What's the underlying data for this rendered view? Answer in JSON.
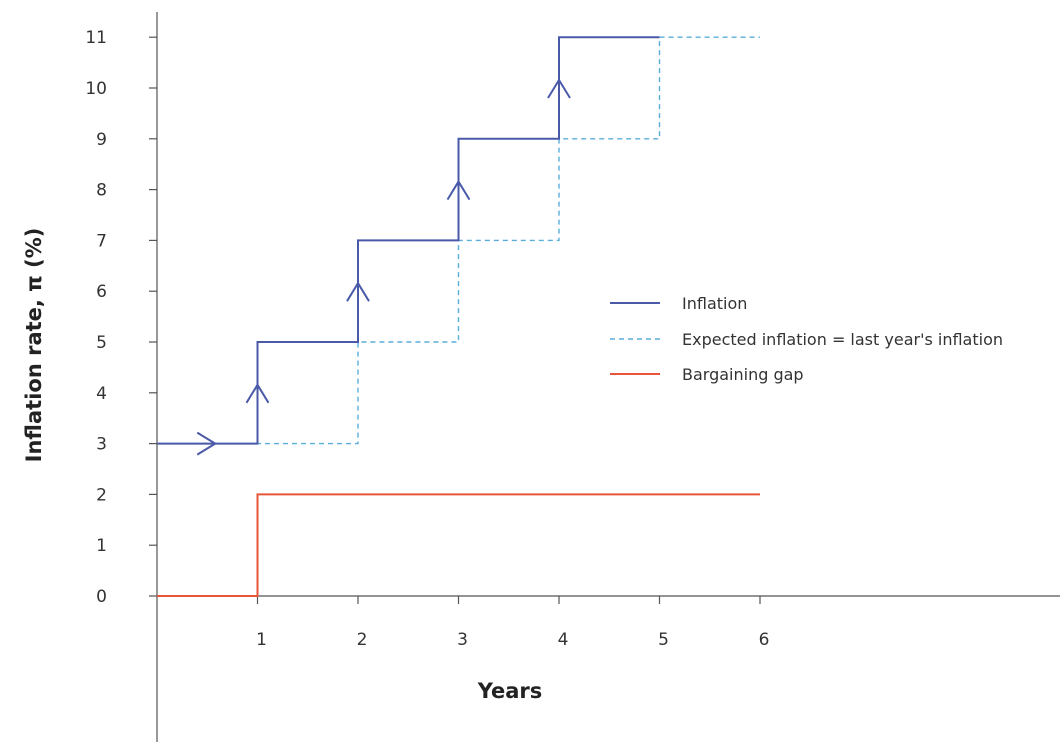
{
  "chart_data": {
    "type": "line",
    "xlabel": "Years",
    "ylabel": "Inflation rate, π (%)",
    "xlim": [
      0,
      9
    ],
    "ylim": [
      0,
      11
    ],
    "x_ticks": [
      "1",
      "2",
      "3",
      "4",
      "5",
      "6"
    ],
    "y_ticks": [
      "0",
      "1",
      "2",
      "3",
      "4",
      "5",
      "6",
      "7",
      "8",
      "9",
      "10",
      "11"
    ],
    "legend_position": "right",
    "series": [
      {
        "name": "Inflation",
        "style": "solid",
        "color": "#4a5aa8",
        "points": [
          [
            0,
            3
          ],
          [
            1,
            3
          ],
          [
            1,
            5
          ],
          [
            2,
            5
          ],
          [
            2,
            7
          ],
          [
            3,
            7
          ],
          [
            3,
            9
          ],
          [
            4,
            9
          ],
          [
            4,
            11
          ],
          [
            5,
            11
          ]
        ],
        "arrows": [
          {
            "x": 0.5,
            "y": 3,
            "direction": "right"
          },
          {
            "x": 1,
            "y": 4,
            "direction": "up"
          },
          {
            "x": 2,
            "y": 6,
            "direction": "up"
          },
          {
            "x": 3,
            "y": 8,
            "direction": "up"
          },
          {
            "x": 4,
            "y": 10,
            "direction": "up"
          }
        ]
      },
      {
        "name": "Expected inflation = last year's inflation",
        "style": "dashed",
        "color": "#5aaedc",
        "points": [
          [
            0,
            3
          ],
          [
            2,
            3
          ],
          [
            2,
            5
          ],
          [
            3,
            5
          ],
          [
            3,
            7
          ],
          [
            4,
            7
          ],
          [
            4,
            9
          ],
          [
            5,
            9
          ],
          [
            5,
            11
          ],
          [
            6,
            11
          ]
        ]
      },
      {
        "name": "Bargaining gap",
        "style": "solid",
        "color": "#e8553a",
        "points": [
          [
            0,
            0
          ],
          [
            1,
            0
          ],
          [
            1,
            2
          ],
          [
            6,
            2
          ]
        ]
      }
    ]
  }
}
